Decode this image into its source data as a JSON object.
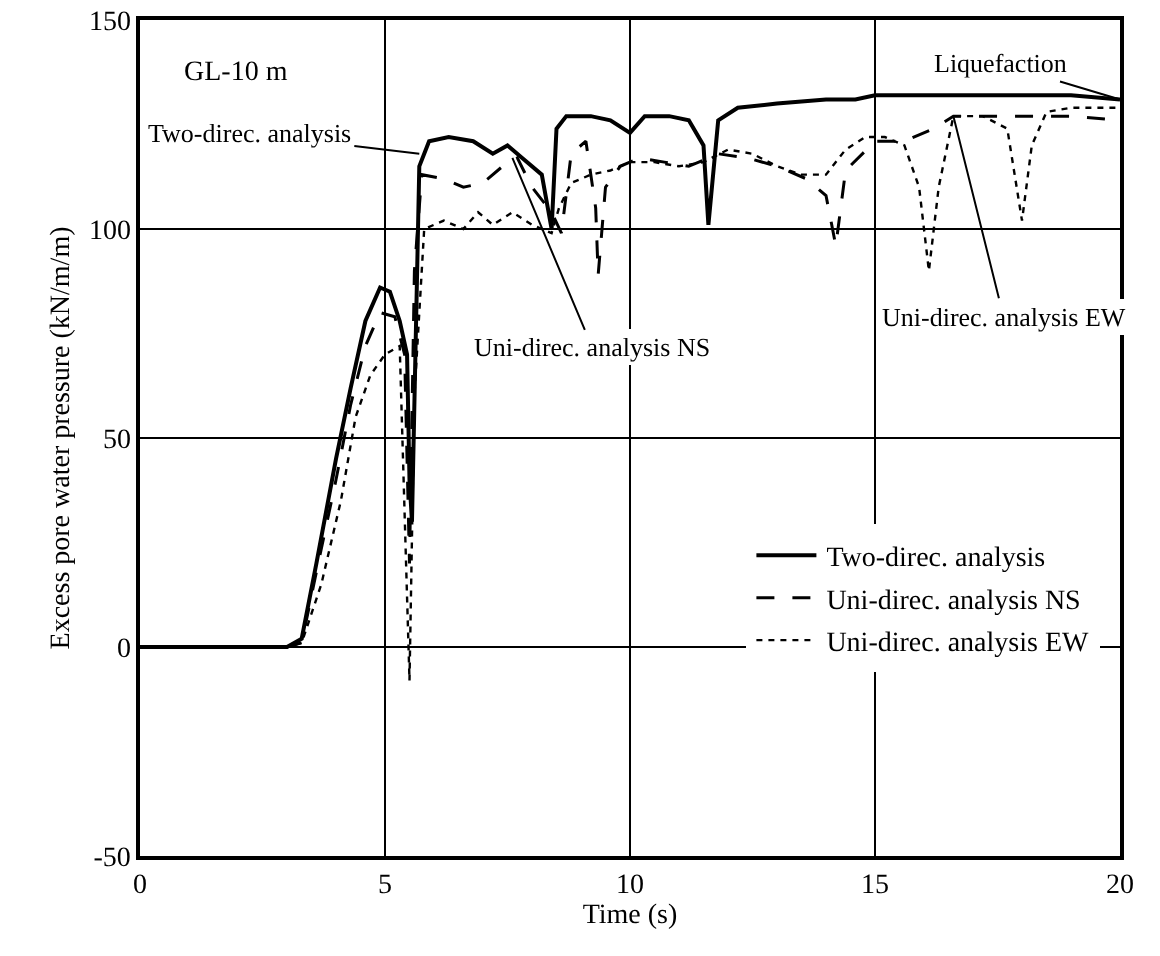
{
  "chart_data": {
    "type": "line",
    "xlabel": "Time (s)",
    "ylabel": "Excess pore water pressure (kN/m/m)",
    "xlim": [
      0,
      20
    ],
    "xticks": [
      0,
      5,
      10,
      15,
      20
    ],
    "ylim": [
      -50,
      150
    ],
    "yticks": [
      -50,
      0,
      50,
      100,
      150
    ],
    "grid": true,
    "legend": "bottom right",
    "marker": "none",
    "series": [
      {
        "name": "Two-direc. analysis",
        "color": "#000000",
        "line_style": "solid",
        "x": [
          0,
          3,
          3.3,
          3.6,
          4,
          4.3,
          4.6,
          4.9,
          5.1,
          5.3,
          5.45,
          5.5,
          5.55,
          5.7,
          5.9,
          6.3,
          6.8,
          7.2,
          7.5,
          7.8,
          8.2,
          8.4,
          8.5,
          8.7,
          9.2,
          9.6,
          10,
          10.3,
          10.8,
          11.2,
          11.5,
          11.6,
          11.8,
          12.2,
          13,
          14,
          14.6,
          15,
          16,
          17,
          18,
          19,
          20
        ],
        "values": [
          0,
          0,
          2,
          20,
          45,
          62,
          78,
          86,
          85,
          78,
          70,
          40,
          30,
          115,
          121,
          122,
          121,
          118,
          120,
          117,
          113,
          100,
          124,
          127,
          127,
          126,
          123,
          127,
          127,
          126,
          120,
          101,
          126,
          129,
          130,
          131,
          131,
          132,
          132,
          132,
          132,
          132,
          131
        ]
      },
      {
        "name": "Uni-direc. analysis NS",
        "color": "#000000",
        "line_style": "dashed",
        "x": [
          0,
          3,
          3.3,
          3.6,
          4,
          4.3,
          4.6,
          4.9,
          5.2,
          5.4,
          5.5,
          5.6,
          5.75,
          6.2,
          6.6,
          7,
          7.4,
          7.7,
          8,
          8.4,
          8.6,
          8.8,
          9.1,
          9.3,
          9.35,
          9.5,
          9.8,
          10.2,
          10.7,
          11.2,
          11.8,
          12.4,
          13,
          13.6,
          14,
          14.2,
          14.4,
          15,
          15.6,
          16.2,
          16.6,
          18,
          19,
          20
        ],
        "values": [
          0,
          0,
          1,
          18,
          40,
          58,
          72,
          80,
          79,
          70,
          20,
          90,
          113,
          112,
          110,
          111,
          115,
          117,
          110,
          104,
          99,
          118,
          121,
          105,
          89,
          110,
          115,
          117,
          116,
          115,
          118,
          117,
          115,
          112,
          108,
          96,
          114,
          121,
          121,
          124,
          127,
          127,
          127,
          126
        ]
      },
      {
        "name": "Uni-direc. analysis EW",
        "color": "#000000",
        "line_style": "dotted",
        "x": [
          0,
          3,
          3.3,
          3.7,
          4.1,
          4.4,
          4.7,
          5,
          5.3,
          5.5,
          5.6,
          5.8,
          6.2,
          6.6,
          6.9,
          7.2,
          7.6,
          8,
          8.4,
          8.55,
          8.8,
          9.2,
          9.6,
          10,
          10.5,
          11,
          11.5,
          12,
          12.5,
          13,
          13.5,
          14,
          14.4,
          14.8,
          15.2,
          15.6,
          15.9,
          16.1,
          16.3,
          16.6,
          17.2,
          17.7,
          18,
          18.2,
          18.5,
          19,
          20
        ],
        "values": [
          0,
          0,
          1,
          15,
          35,
          55,
          65,
          70,
          72,
          -8,
          60,
          100,
          102,
          100,
          104,
          101,
          104,
          101,
          99,
          105,
          111,
          113,
          114,
          116,
          116,
          115,
          116,
          119,
          118,
          115,
          113,
          113,
          119,
          122,
          122,
          120,
          110,
          90,
          110,
          127,
          127,
          124,
          102,
          120,
          128,
          129,
          129
        ]
      }
    ],
    "annotations": [
      "GL-10 m",
      {
        "text": "Two-direc. analysis",
        "x": 5.7,
        "y": 118
      },
      {
        "text": "Uni-direc. analysis NS",
        "x": 7.6,
        "y": 117
      },
      {
        "text": "Uni-direc. analysis EW",
        "x": 16.6,
        "y": 127
      },
      {
        "text": "Liquefaction",
        "x": 20,
        "y": 131
      }
    ]
  }
}
